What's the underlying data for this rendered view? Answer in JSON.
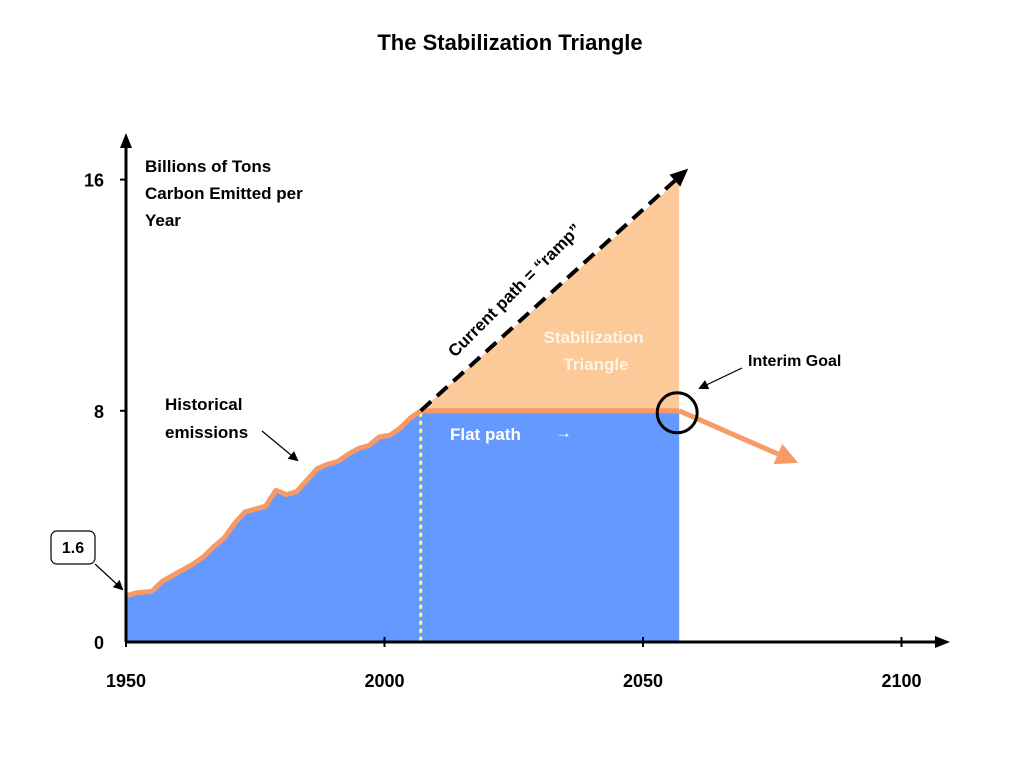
{
  "chart_data": {
    "type": "area",
    "title": "The Stabilization Triangle",
    "ylabel_lines": [
      "Billions of Tons",
      "Carbon Emitted per",
      "Year"
    ],
    "x_ticks": [
      1950,
      2000,
      2050,
      2100
    ],
    "y_ticks": [
      0,
      8,
      16
    ],
    "xlim": [
      1950,
      2105
    ],
    "ylim": [
      0,
      17.5
    ],
    "series": [
      {
        "name": "Historical emissions",
        "x": [
          1950,
          1952,
          1955,
          1957,
          1959,
          1961,
          1963,
          1965,
          1967,
          1969,
          1971,
          1973,
          1975,
          1977,
          1979,
          1981,
          1983,
          1985,
          1987,
          1989,
          1991,
          1993,
          1995,
          1997,
          1999,
          2001,
          2003,
          2005,
          2007
        ],
        "y": [
          1.6,
          1.7,
          1.75,
          2.1,
          2.3,
          2.5,
          2.7,
          2.95,
          3.3,
          3.6,
          4.1,
          4.5,
          4.6,
          4.7,
          5.25,
          5.1,
          5.2,
          5.6,
          6.0,
          6.15,
          6.25,
          6.5,
          6.7,
          6.8,
          7.1,
          7.15,
          7.4,
          7.75,
          8.0
        ]
      },
      {
        "name": "Flat path",
        "x": [
          2007,
          2057
        ],
        "y": [
          8,
          8
        ]
      },
      {
        "name": "Current path = “ramp”",
        "x": [
          2007,
          2057
        ],
        "y": [
          8,
          16
        ]
      },
      {
        "name": "Interim Goal decline",
        "x": [
          2057,
          2080
        ],
        "y": [
          8,
          6.2
        ]
      }
    ],
    "annotations": {
      "start_value": "1.6",
      "historical": [
        "Historical",
        "emissions"
      ],
      "ramp": "Current path = “ramp”",
      "triangle": [
        "Stabilization",
        "Triangle"
      ],
      "flat": "Flat path",
      "interim": "Interim Goal",
      "flat_arrow": "→"
    },
    "colors": {
      "history_fill": "#6699ff",
      "triangle_fill": "#fcc998",
      "line": "#f79a66",
      "divider": "#ffff66",
      "axis": "#000000"
    },
    "grid": false
  }
}
